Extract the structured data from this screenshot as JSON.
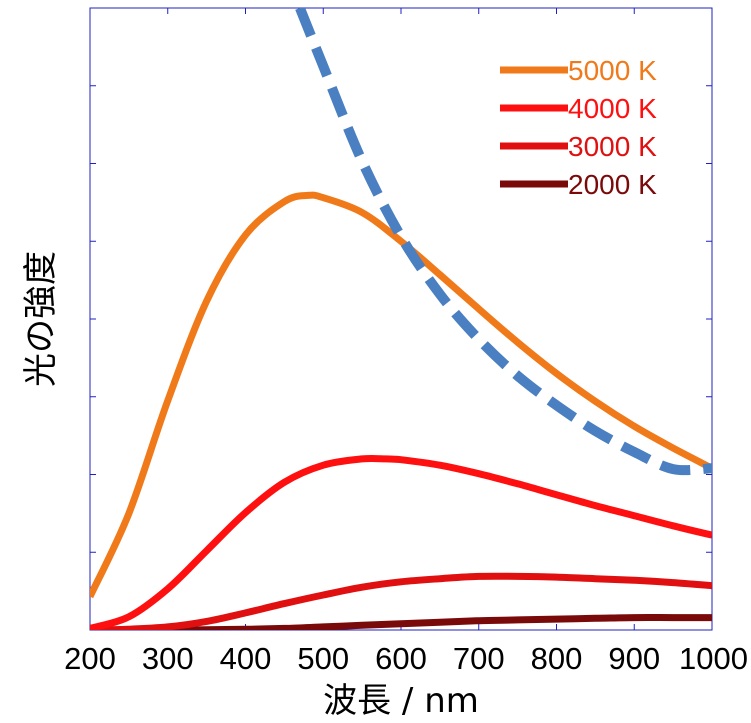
{
  "chart_data": {
    "type": "line",
    "title": "",
    "xlabel": "波長 / nm",
    "ylabel": "光の強度",
    "xlim": [
      200,
      1000
    ],
    "ylim": [
      0,
      8
    ],
    "x_ticks": [
      "200",
      "300",
      "400",
      "500",
      "600",
      "700",
      "800",
      "900",
      "1000"
    ],
    "y_tick_count": 8,
    "y_tick_labels_shown": false,
    "grid": false,
    "legend_position": "top-right",
    "y_unit": "relative intensity (arbitrary)",
    "series": [
      {
        "name": "5000 K",
        "color": "#f07a1a",
        "style": "solid",
        "x": [
          200,
          250,
          300,
          350,
          400,
          450,
          480,
          500,
          550,
          600,
          650,
          700,
          750,
          800,
          850,
          900,
          950,
          1000
        ],
        "y": [
          0.43,
          1.5,
          2.95,
          4.23,
          5.08,
          5.51,
          5.59,
          5.56,
          5.37,
          5.0,
          4.57,
          4.13,
          3.7,
          3.3,
          2.94,
          2.62,
          2.34,
          2.08
        ]
      },
      {
        "name": "4000 K",
        "color": "#ff1010",
        "style": "solid",
        "x": [
          200,
          250,
          300,
          350,
          400,
          450,
          500,
          550,
          580,
          600,
          650,
          700,
          750,
          800,
          850,
          900,
          950,
          1000
        ],
        "y": [
          0.02,
          0.17,
          0.53,
          1.02,
          1.51,
          1.9,
          2.12,
          2.2,
          2.2,
          2.19,
          2.12,
          2.01,
          1.88,
          1.74,
          1.6,
          1.47,
          1.34,
          1.22
        ]
      },
      {
        "name": "3000 K",
        "color": "#e01010",
        "style": "solid",
        "x": [
          200,
          250,
          300,
          350,
          400,
          450,
          500,
          550,
          600,
          650,
          700,
          750,
          800,
          850,
          900,
          950,
          1000
        ],
        "y": [
          0.0,
          0.01,
          0.04,
          0.11,
          0.22,
          0.34,
          0.45,
          0.55,
          0.62,
          0.66,
          0.69,
          0.69,
          0.68,
          0.66,
          0.64,
          0.61,
          0.57
        ]
      },
      {
        "name": "2000 K",
        "color": "#7a0a0a",
        "style": "solid",
        "x": [
          200,
          300,
          400,
          450,
          500,
          550,
          600,
          650,
          700,
          750,
          800,
          850,
          900,
          950,
          1000
        ],
        "y": [
          0.0,
          0.0,
          0.01,
          0.02,
          0.04,
          0.06,
          0.08,
          0.1,
          0.12,
          0.13,
          0.14,
          0.15,
          0.16,
          0.16,
          0.16
        ]
      },
      {
        "name": "",
        "color": "#4a7fc1",
        "style": "dashed",
        "x": [
          470,
          500,
          550,
          600,
          650,
          700,
          750,
          800,
          850,
          900,
          950,
          1000
        ],
        "y": [
          8.0,
          7.25,
          6.03,
          5.06,
          4.32,
          3.74,
          3.27,
          2.89,
          2.56,
          2.29,
          2.07,
          2.08
        ]
      }
    ]
  }
}
